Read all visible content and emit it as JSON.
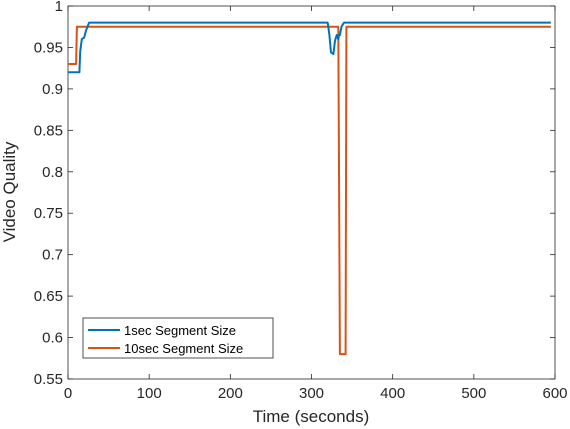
{
  "chart_data": {
    "type": "line",
    "title": "",
    "xlabel": "Time (seconds)",
    "ylabel": "Video Quality",
    "xlim": [
      0,
      600
    ],
    "ylim": [
      0.55,
      1
    ],
    "xticks": [
      "0",
      "100",
      "200",
      "300",
      "400",
      "500",
      "600"
    ],
    "yticks": [
      "0.55",
      "0.6",
      "0.65",
      "0.7",
      "0.75",
      "0.8",
      "0.85",
      "0.9",
      "0.95",
      "1"
    ],
    "grid": false,
    "legend_position": "bottom-left",
    "series": [
      {
        "name": "1sec Segment Size",
        "color": "#0072BD",
        "x": [
          0,
          1,
          14,
          15,
          17,
          20,
          22,
          24,
          26,
          28,
          320,
          322,
          324,
          327,
          329,
          331,
          333,
          334,
          335,
          337,
          340,
          342,
          345,
          595
        ],
        "y": [
          0.92,
          0.92,
          0.92,
          0.945,
          0.96,
          0.962,
          0.97,
          0.975,
          0.98,
          0.98,
          0.98,
          0.965,
          0.944,
          0.942,
          0.958,
          0.965,
          0.96,
          0.965,
          0.965,
          0.975,
          0.98,
          0.98,
          0.98,
          0.98
        ]
      },
      {
        "name": "10sec Segment Size",
        "color": "#D95319",
        "x": [
          0,
          1,
          10,
          11,
          328,
          333,
          335,
          342,
          343,
          595
        ],
        "y": [
          0.93,
          0.93,
          0.93,
          0.975,
          0.975,
          0.975,
          0.58,
          0.58,
          0.975,
          0.975
        ]
      }
    ]
  }
}
